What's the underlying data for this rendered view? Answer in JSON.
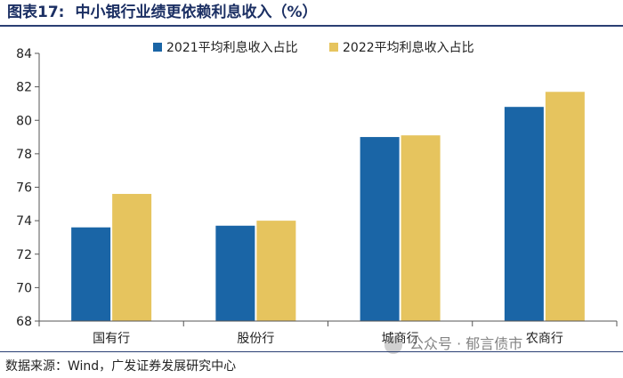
{
  "header": {
    "figure_label": "图表17:",
    "title": "中小银行业绩更依赖利息收入（%）"
  },
  "watermark": {
    "text": "公众号 · 郁言债市"
  },
  "chart_data": {
    "type": "bar",
    "title": "中小银行业绩更依赖利息收入（%）",
    "categories": [
      "国有行",
      "股份行",
      "城商行",
      "农商行"
    ],
    "series": [
      {
        "name": "2021平均利息收入占比",
        "values": [
          73.6,
          73.7,
          79.0,
          80.8
        ],
        "color": "#1a65a6"
      },
      {
        "name": "2022平均利息收入占比",
        "values": [
          75.6,
          74.0,
          79.1,
          81.7
        ],
        "color": "#e6c45e"
      }
    ],
    "ylim": [
      68,
      84
    ],
    "yticks": [
      68,
      70,
      72,
      74,
      76,
      78,
      80,
      82,
      84
    ],
    "xlabel": "",
    "ylabel": "",
    "legend": "top"
  },
  "footer": {
    "source": "数据来源：Wind，广发证券发展研究中心"
  }
}
